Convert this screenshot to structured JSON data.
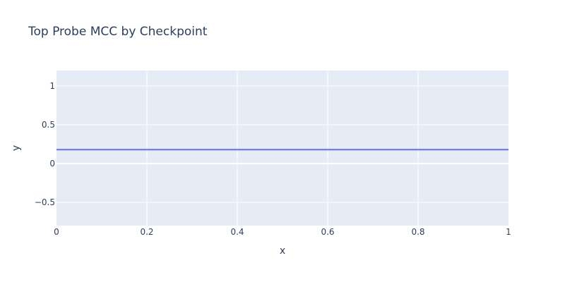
{
  "chart_data": {
    "type": "line",
    "title": "Top Probe MCC by Checkpoint",
    "xlabel": "x",
    "ylabel": "y",
    "xlim": [
      0,
      1
    ],
    "ylim": [
      -0.8,
      1.2
    ],
    "x_ticks": [
      0,
      0.2,
      0.4,
      0.6,
      0.8,
      1
    ],
    "x_tick_labels": [
      "0",
      "0.2",
      "0.4",
      "0.6",
      "0.8",
      "1"
    ],
    "y_ticks": [
      -0.5,
      0,
      0.5,
      1
    ],
    "y_tick_labels": [
      "−0.5",
      "0",
      "0.5",
      "1"
    ],
    "grid": true,
    "series": [
      {
        "x": [
          0,
          1
        ],
        "y": [
          0.18,
          0.18
        ],
        "color": "#636efa"
      }
    ]
  },
  "colors": {
    "plot_background": "#e5ecf6",
    "grid": "#ffffff",
    "text": "#2a3f5f"
  }
}
